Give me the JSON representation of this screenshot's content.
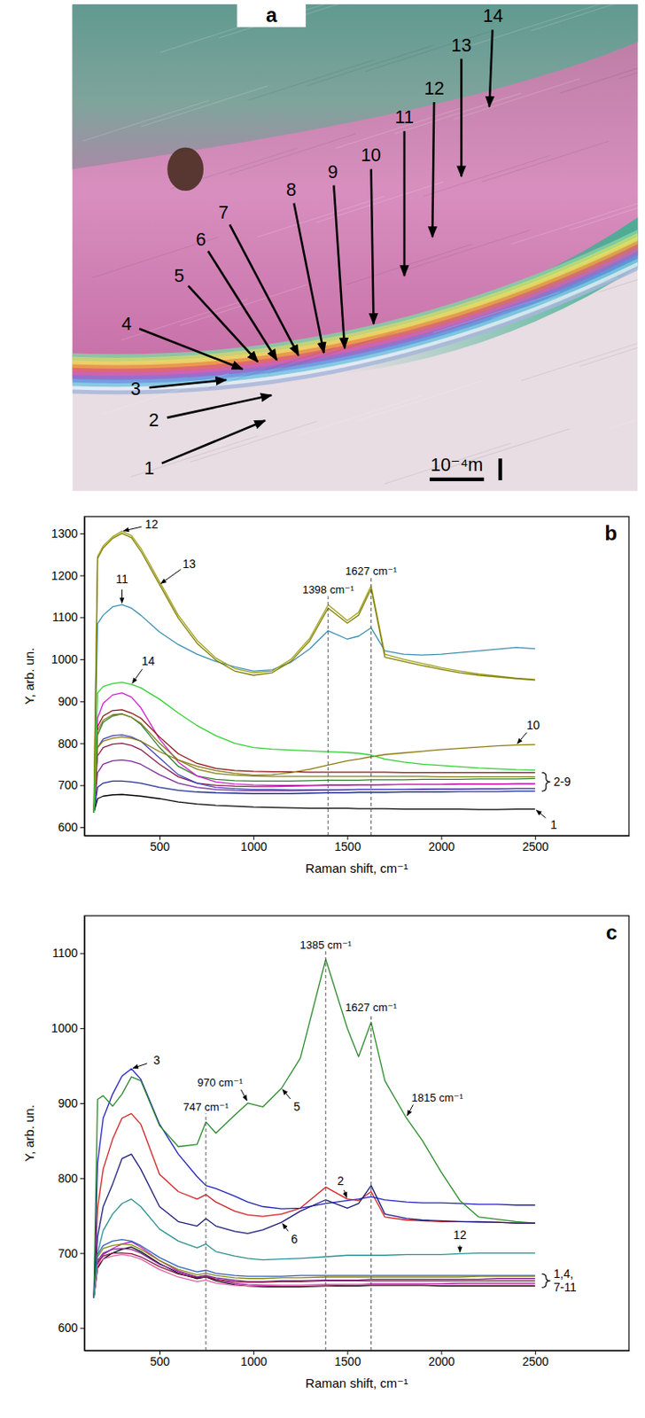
{
  "micrograph": {
    "label": "a",
    "arrow_labels": [
      "1",
      "2",
      "3",
      "4",
      "5",
      "6",
      "7",
      "8",
      "9",
      "10",
      "11",
      "12",
      "13",
      "14"
    ],
    "scale_bar": "10⁻⁴m"
  },
  "chart_data": [
    {
      "type": "line",
      "title": "b",
      "x_label": "Raman shift, cm⁻¹",
      "y_label": "Y, arb. un.",
      "xlim": [
        100,
        3000
      ],
      "xticks": [
        500,
        1000,
        1500,
        2000,
        2500
      ],
      "ylim": [
        580,
        1340
      ],
      "yticks": [
        600,
        700,
        800,
        900,
        1000,
        1100,
        1200,
        1300
      ],
      "x": [
        150,
        170,
        200,
        250,
        300,
        350,
        400,
        500,
        600,
        700,
        800,
        900,
        1000,
        1100,
        1200,
        1300,
        1398,
        1500,
        1560,
        1627,
        1700,
        1800,
        1900,
        2000,
        2100,
        2200,
        2300,
        2400,
        2500
      ],
      "series": [
        {
          "name": "1",
          "color": "#000000",
          "values": [
            635,
            668,
            674,
            677,
            678,
            676,
            674,
            668,
            660,
            655,
            652,
            650,
            648,
            647,
            646,
            645,
            645,
            645,
            644,
            644,
            644,
            643,
            643,
            643,
            643,
            642,
            642,
            643,
            643
          ]
        },
        {
          "color": "#1f2f8f",
          "values": [
            635,
            695,
            705,
            710,
            710,
            708,
            705,
            695,
            688,
            684,
            682,
            681,
            680,
            680,
            680,
            681,
            682,
            682,
            683,
            683,
            683,
            684,
            684,
            684,
            685,
            685,
            685,
            686,
            686
          ]
        },
        {
          "color": "#7b2a9a",
          "values": [
            635,
            730,
            750,
            758,
            760,
            757,
            750,
            725,
            705,
            695,
            690,
            688,
            687,
            687,
            687,
            688,
            689,
            689,
            690,
            690,
            690,
            690,
            691,
            691,
            691,
            692,
            692,
            692,
            692
          ]
        },
        {
          "color": "#8b1a4a",
          "values": [
            635,
            770,
            790,
            798,
            800,
            795,
            785,
            750,
            720,
            705,
            700,
            698,
            697,
            697,
            698,
            699,
            700,
            700,
            701,
            701,
            701,
            702,
            702,
            702,
            703,
            703,
            703,
            704,
            704
          ]
        },
        {
          "color": "#2f7f2f",
          "values": [
            635,
            820,
            850,
            865,
            870,
            862,
            845,
            790,
            745,
            722,
            714,
            711,
            710,
            710,
            710,
            711,
            712,
            712,
            712,
            713,
            713,
            713,
            714,
            714,
            714,
            715,
            715,
            715,
            716
          ]
        },
        {
          "color": "#d020d0",
          "values": [
            635,
            860,
            895,
            915,
            920,
            910,
            885,
            810,
            755,
            722,
            708,
            703,
            701,
            700,
            700,
            700,
            701,
            701,
            701,
            701,
            702,
            702,
            702,
            702,
            703,
            703,
            703,
            703,
            703
          ]
        },
        {
          "color": "#8b1010",
          "values": [
            635,
            840,
            865,
            878,
            880,
            872,
            860,
            815,
            775,
            752,
            740,
            735,
            733,
            732,
            732,
            731,
            731,
            731,
            731,
            731,
            731,
            730,
            730,
            730,
            730,
            730,
            730,
            730,
            730
          ]
        },
        {
          "color": "#4040c0",
          "values": [
            635,
            790,
            810,
            818,
            820,
            815,
            805,
            765,
            725,
            705,
            695,
            692,
            690,
            690,
            689,
            689,
            689,
            690,
            690,
            690,
            690,
            690,
            690,
            691,
            691,
            691,
            691,
            692,
            692
          ]
        },
        {
          "color": "#7f7f20",
          "values": [
            635,
            830,
            855,
            868,
            870,
            862,
            848,
            800,
            760,
            738,
            728,
            724,
            722,
            721,
            721,
            721,
            721,
            721,
            721,
            721,
            721,
            721,
            721,
            720,
            720,
            720,
            720,
            720,
            720
          ]
        },
        {
          "name": "10",
          "color": "#8b7a10",
          "values": [
            635,
            790,
            805,
            812,
            815,
            812,
            805,
            780,
            760,
            745,
            735,
            728,
            724,
            725,
            730,
            738,
            748,
            758,
            762,
            768,
            773,
            777,
            781,
            785,
            788,
            791,
            794,
            796,
            797
          ]
        },
        {
          "name": "11",
          "color": "#3a8fb0",
          "values": [
            635,
            1085,
            1105,
            1125,
            1130,
            1122,
            1105,
            1065,
            1035,
            1012,
            995,
            982,
            972,
            975,
            993,
            1025,
            1068,
            1048,
            1055,
            1075,
            1020,
            1012,
            1010,
            1012,
            1016,
            1020,
            1024,
            1028,
            1025
          ]
        },
        {
          "name": "12",
          "color": "#a0a020",
          "values": [
            635,
            1245,
            1270,
            1292,
            1305,
            1295,
            1265,
            1185,
            1105,
            1045,
            1003,
            978,
            968,
            972,
            1000,
            1050,
            1130,
            1092,
            1112,
            1175,
            1012,
            1000,
            990,
            980,
            972,
            965,
            960,
            955,
            952
          ]
        },
        {
          "name": "13",
          "color": "#808000",
          "values": [
            635,
            1240,
            1265,
            1288,
            1300,
            1290,
            1258,
            1178,
            1098,
            1038,
            998,
            972,
            962,
            968,
            995,
            1044,
            1122,
            1086,
            1105,
            1168,
            1005,
            995,
            985,
            976,
            968,
            962,
            958,
            954,
            950
          ]
        },
        {
          "name": "14",
          "color": "#33d033",
          "values": [
            635,
            920,
            935,
            942,
            945,
            940,
            932,
            905,
            872,
            842,
            818,
            800,
            790,
            786,
            784,
            782,
            780,
            778,
            776,
            772,
            762,
            755,
            750,
            747,
            744,
            741,
            739,
            737,
            736
          ]
        }
      ],
      "annotations": [
        {
          "text": "1398 cm⁻¹",
          "x": 1398,
          "line_style": "dashed"
        },
        {
          "text": "1627 cm⁻¹",
          "x": 1627,
          "line_style": "dashed"
        }
      ],
      "group_label": "2-9"
    },
    {
      "type": "line",
      "title": "c",
      "x_label": "Raman shift, cm⁻¹",
      "y_label": "Y, arb. un.",
      "xlim": [
        100,
        3000
      ],
      "xticks": [
        500,
        1000,
        1500,
        2000,
        2500
      ],
      "ylim": [
        570,
        1150
      ],
      "yticks": [
        600,
        700,
        800,
        900,
        1000,
        1100
      ],
      "x": [
        150,
        170,
        200,
        250,
        300,
        350,
        400,
        500,
        600,
        700,
        747,
        800,
        900,
        970,
        1050,
        1150,
        1250,
        1385,
        1500,
        1560,
        1627,
        1700,
        1815,
        1900,
        2000,
        2100,
        2200,
        2300,
        2400,
        2500
      ],
      "series": [
        {
          "color": "#000000",
          "values": [
            640,
            680,
            692,
            700,
            705,
            708,
            702,
            686,
            673,
            666,
            668,
            663,
            658,
            656,
            655,
            655,
            655,
            656,
            656,
            656,
            657,
            657,
            657,
            657,
            656,
            656,
            656,
            656,
            656,
            656
          ]
        },
        {
          "name": "2",
          "color": "#d02020",
          "values": [
            640,
            760,
            812,
            852,
            880,
            886,
            872,
            805,
            782,
            772,
            778,
            768,
            756,
            751,
            749,
            752,
            760,
            788,
            772,
            770,
            782,
            748,
            744,
            743,
            742,
            742,
            741,
            741,
            740,
            740
          ]
        },
        {
          "name": "3",
          "color": "#2020c0",
          "values": [
            640,
            820,
            880,
            912,
            936,
            946,
            932,
            872,
            832,
            802,
            790,
            786,
            776,
            768,
            762,
            759,
            760,
            766,
            770,
            772,
            775,
            771,
            768,
            767,
            767,
            766,
            765,
            765,
            764,
            764
          ]
        },
        {
          "color": "#c020c0",
          "values": [
            640,
            685,
            698,
            706,
            712,
            715,
            708,
            690,
            676,
            668,
            670,
            665,
            660,
            658,
            657,
            657,
            657,
            658,
            658,
            658,
            659,
            659,
            659,
            659,
            659,
            660,
            660,
            660,
            660,
            660
          ]
        },
        {
          "name": "5",
          "color": "#2a8a2a",
          "values": [
            640,
            905,
            910,
            896,
            912,
            935,
            930,
            870,
            842,
            845,
            875,
            860,
            884,
            900,
            895,
            920,
            960,
            1092,
            1000,
            962,
            1008,
            930,
            880,
            850,
            808,
            770,
            748,
            745,
            742,
            740
          ]
        },
        {
          "name": "6",
          "color": "#1a1a7a",
          "values": [
            640,
            722,
            762,
            792,
            826,
            832,
            812,
            762,
            742,
            736,
            746,
            736,
            729,
            726,
            731,
            741,
            756,
            771,
            760,
            766,
            790,
            752,
            746,
            744,
            743,
            742,
            742,
            741,
            740,
            740
          ]
        },
        {
          "color": "#7a2a9a",
          "values": [
            640,
            690,
            700,
            705,
            706,
            705,
            700,
            685,
            675,
            668,
            670,
            667,
            664,
            662,
            662,
            663,
            663,
            664,
            664,
            664,
            665,
            665,
            665,
            665,
            665,
            665,
            665,
            666,
            666,
            666
          ]
        },
        {
          "color": "#8a8a10",
          "values": [
            640,
            695,
            706,
            710,
            712,
            711,
            705,
            690,
            678,
            671,
            673,
            670,
            667,
            666,
            666,
            667,
            667,
            668,
            668,
            668,
            668,
            668,
            668,
            668,
            668,
            668,
            669,
            669,
            669,
            669
          ]
        },
        {
          "color": "#8a1040",
          "values": [
            640,
            688,
            696,
            700,
            700,
            699,
            695,
            682,
            672,
            667,
            668,
            665,
            662,
            661,
            661,
            662,
            662,
            663,
            663,
            663,
            663,
            663,
            663,
            663,
            663,
            663,
            663,
            663,
            663,
            663
          ]
        },
        {
          "color": "#3060c0",
          "values": [
            640,
            698,
            710,
            716,
            718,
            716,
            710,
            694,
            682,
            675,
            677,
            673,
            670,
            669,
            669,
            669,
            670,
            670,
            670,
            670,
            670,
            670,
            670,
            670,
            670,
            670,
            670,
            670,
            670,
            670
          ]
        },
        {
          "color": "#e060a0",
          "values": [
            640,
            684,
            692,
            696,
            698,
            696,
            692,
            678,
            668,
            662,
            664,
            660,
            657,
            656,
            656,
            657,
            657,
            657,
            658,
            658,
            658,
            658,
            658,
            658,
            658,
            658,
            658,
            658,
            658,
            658
          ]
        },
        {
          "name": "12",
          "color": "#2a9090",
          "values": [
            640,
            700,
            730,
            752,
            766,
            772,
            762,
            732,
            716,
            707,
            712,
            702,
            696,
            693,
            691,
            692,
            693,
            695,
            697,
            697,
            697,
            697,
            698,
            698,
            698,
            699,
            700,
            700,
            700,
            700
          ]
        }
      ],
      "annotations": [
        {
          "text": "747 cm⁻¹",
          "x": 747,
          "line_style": "dashed"
        },
        {
          "text": "970 cm⁻¹",
          "x": 970,
          "line_style": "solid"
        },
        {
          "text": "1385 cm⁻¹",
          "x": 1385,
          "line_style": "dashed"
        },
        {
          "text": "1627 cm⁻¹",
          "x": 1627,
          "line_style": "dashed"
        },
        {
          "text": "1815 cm⁻¹",
          "x": 1815,
          "line_style": "solid"
        }
      ],
      "group_label": "1,4,7-11"
    }
  ]
}
